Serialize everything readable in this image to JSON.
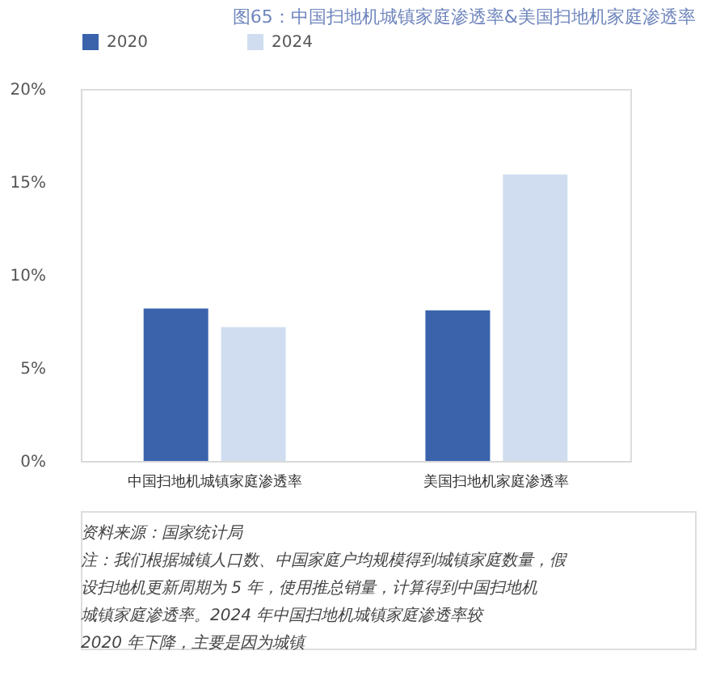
{
  "chart_data": {
    "type": "bar",
    "title": "图65：中国扫地机城镇家庭渗透率&美国扫地机家庭渗透率",
    "categories": [
      "中国扫地机城镇家庭渗透率",
      "美国扫地机家庭渗透率"
    ],
    "series": [
      {
        "name": "2020",
        "color": "#3a63ac",
        "values": [
          8.2,
          8.1
        ]
      },
      {
        "name": "2024",
        "color": "#d0ddf0",
        "values": [
          7.2,
          15.4
        ]
      }
    ],
    "ylim": [
      0,
      20
    ],
    "yticks": [
      {
        "value": 0,
        "label": "0%"
      },
      {
        "value": 5,
        "label": "5%"
      },
      {
        "value": 10,
        "label": "10%"
      },
      {
        "value": 15,
        "label": "15%"
      },
      {
        "value": 20,
        "label": "20%"
      }
    ],
    "grid": false,
    "legend": "top",
    "annotations": [
      "资料来源：国家统计局",
      "注：我们根据城镇人口数、中国家庭户均规模得到城镇家庭数量，假设扫地机更新周期为 5 年，使用推总销量，计算得到中国扫地机城镇家庭渗透率。2024 年中国扫地机城镇家庭渗透率较 2020 年下降，主要是因为城镇"
    ]
  }
}
